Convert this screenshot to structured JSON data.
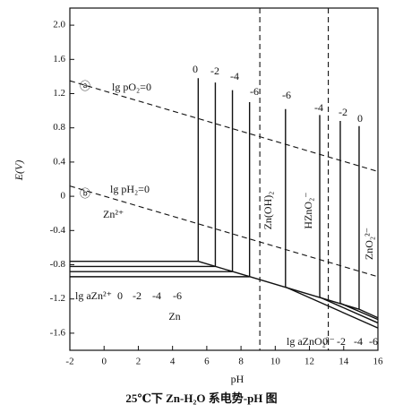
{
  "chart_data": {
    "type": "line",
    "title": "25℃下 Zn-H₂O 系电势-pH 图",
    "xlabel": "pH",
    "ylabel": "E(V)",
    "xlim": [
      -2,
      16
    ],
    "ylim": [
      -1.8,
      2.2
    ],
    "xticks": [
      -2,
      0,
      2,
      4,
      6,
      8,
      10,
      12,
      14,
      16
    ],
    "yticks": [
      -1.6,
      -1.2,
      -0.8,
      -0.4,
      0,
      0.4,
      0.8,
      1.2,
      1.6,
      {
        "value": 2,
        "label": "2.0"
      }
    ],
    "color": "#111111",
    "series": [
      {
        "x": [
          -2,
          16
        ],
        "values": [
          1.35,
          0.29
        ],
        "dash": true
      },
      {
        "x": [
          -2,
          16
        ],
        "values": [
          0.12,
          -0.94
        ],
        "dash": true
      },
      {
        "x": [
          9.1,
          9.1
        ],
        "values": [
          2.2,
          -1.8
        ],
        "dash": true
      },
      {
        "x": [
          13.1,
          13.1
        ],
        "values": [
          2.2,
          -1.8
        ],
        "dash": true
      },
      {
        "x": [
          -2,
          5.5
        ],
        "values": [
          -0.76,
          -0.76
        ],
        "dash": false
      },
      {
        "x": [
          -2,
          6.5
        ],
        "values": [
          -0.82,
          -0.82
        ],
        "dash": false
      },
      {
        "x": [
          -2,
          7.5
        ],
        "values": [
          -0.88,
          -0.88
        ],
        "dash": false
      },
      {
        "x": [
          -2,
          8.5
        ],
        "values": [
          -0.94,
          -0.94
        ],
        "dash": false
      },
      {
        "x": [
          5.5,
          14.9
        ],
        "values": [
          -0.76,
          -1.32
        ],
        "dash": false
      },
      {
        "x": [
          5.5,
          5.5
        ],
        "values": [
          1.38,
          -0.76
        ],
        "dash": false
      },
      {
        "x": [
          6.5,
          6.5
        ],
        "values": [
          1.33,
          -0.82
        ],
        "dash": false
      },
      {
        "x": [
          7.5,
          7.5
        ],
        "values": [
          1.24,
          -0.88
        ],
        "dash": false
      },
      {
        "x": [
          8.5,
          8.5
        ],
        "values": [
          1.1,
          -0.94
        ],
        "dash": false
      },
      {
        "x": [
          10.6,
          10.6
        ],
        "values": [
          1.02,
          -1.06
        ],
        "dash": false
      },
      {
        "x": [
          12.6,
          12.6
        ],
        "values": [
          0.95,
          -1.18
        ],
        "dash": false
      },
      {
        "x": [
          13.8,
          13.8
        ],
        "values": [
          0.88,
          -1.25
        ],
        "dash": false
      },
      {
        "x": [
          14.9,
          14.9
        ],
        "values": [
          0.82,
          -1.32
        ],
        "dash": false
      },
      {
        "x": [
          10.6,
          16
        ],
        "values": [
          -1.06,
          -1.54
        ],
        "dash": false
      },
      {
        "x": [
          12.6,
          16
        ],
        "values": [
          -1.18,
          -1.48
        ],
        "dash": false
      },
      {
        "x": [
          13.8,
          16
        ],
        "values": [
          -1.25,
          -1.44
        ],
        "dash": false
      },
      {
        "x": [
          14.9,
          16
        ],
        "values": [
          -1.32,
          -1.42
        ],
        "dash": false
      }
    ],
    "annotations": [
      "ⓐ",
      "lg pO₂=0",
      "ⓑ",
      "lg pH₂=0",
      "Zn²⁺",
      "Zn",
      "Zn(OH)₂",
      "HZnO₂⁻",
      "ZnO₂²⁻",
      "0",
      "-2",
      "-4",
      "-6",
      "-6",
      "-4",
      "-2",
      "0",
      "lg aZn²⁺",
      "0",
      "-2",
      "-4",
      "-6",
      "lg aZnO₂²⁻",
      "0",
      "-2",
      "-4",
      "-6"
    ]
  }
}
